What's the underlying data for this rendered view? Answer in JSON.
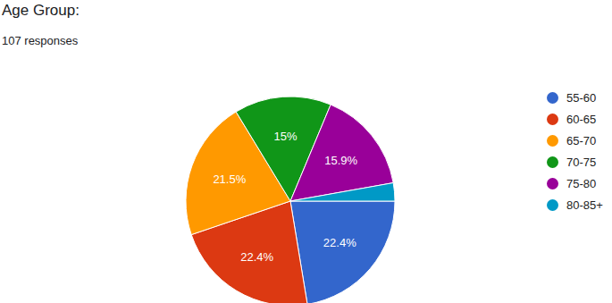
{
  "chart_data": {
    "type": "pie",
    "title": "Age Group:",
    "subtitle": "107 responses",
    "categories": [
      "55-60",
      "60-65",
      "65-70",
      "70-75",
      "75-80",
      "80-85+"
    ],
    "values": [
      22.4,
      22.4,
      21.5,
      15,
      15.9,
      2.8
    ],
    "value_labels": [
      "22.4%",
      "22.4%",
      "21.5%",
      "15%",
      "15.9%",
      null
    ],
    "colors": [
      "#3366cc",
      "#dc3912",
      "#ff9900",
      "#109618",
      "#990099",
      "#0099c6"
    ],
    "data_labels": true,
    "legend": "right"
  }
}
